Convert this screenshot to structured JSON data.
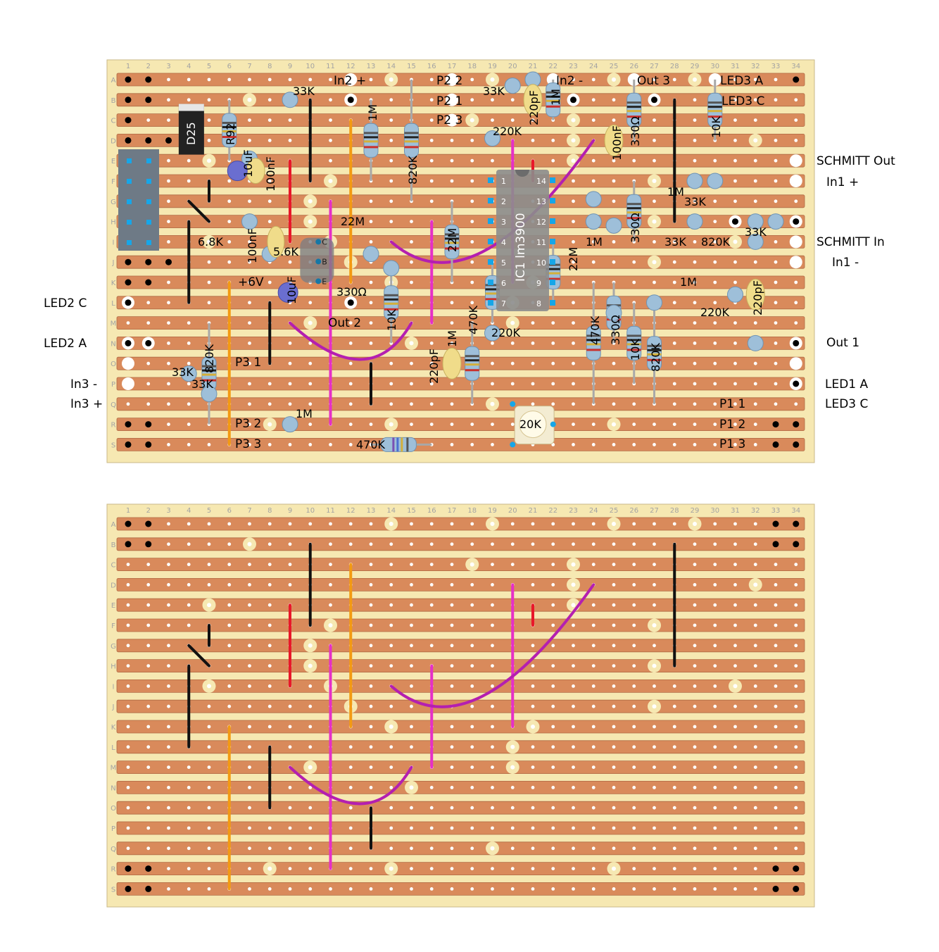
{
  "board": {
    "columns": [
      "1",
      "2",
      "3",
      "4",
      "5",
      "6",
      "7",
      "8",
      "9",
      "10",
      "11",
      "12",
      "13",
      "14",
      "15",
      "16",
      "17",
      "18",
      "19",
      "20",
      "21",
      "22",
      "23",
      "24",
      "25",
      "26",
      "27",
      "28",
      "29",
      "30",
      "31",
      "32",
      "33",
      "34"
    ],
    "rows": [
      "A",
      "B",
      "C",
      "D",
      "E",
      "F",
      "G",
      "H",
      "I",
      "J",
      "K",
      "L",
      "M",
      "N",
      "O",
      "P",
      "Q",
      "R",
      "S"
    ]
  },
  "colors": {
    "board": "#f6e8b2",
    "strip": "#d98a5b",
    "wire_black": "#111111",
    "wire_red": "#e8182a",
    "wire_orange": "#f39a12",
    "wire_magenta": "#e62fc7",
    "wire_purple": "#b41fb0",
    "component_blue": "#9ebfd9",
    "cap_yellow": "#f0dc8a",
    "electrolytic": "#6a6ed0"
  },
  "layout_top": {
    "labels": [
      {
        "id": "in2-plus",
        "text": "In2 +"
      },
      {
        "id": "p2-2",
        "text": "P2 2"
      },
      {
        "id": "p2-1",
        "text": "P2 1"
      },
      {
        "id": "p2-3",
        "text": "P2 3"
      },
      {
        "id": "in2-minus",
        "text": "In2 -"
      },
      {
        "id": "out-3",
        "text": "Out 3"
      },
      {
        "id": "led3-a",
        "text": "LED3 A"
      },
      {
        "id": "led3-c-top",
        "text": "LED3 C"
      },
      {
        "id": "schmitt-out",
        "text": "SCHMITT Out"
      },
      {
        "id": "in1-plus",
        "text": "In1 +"
      },
      {
        "id": "schmitt-in",
        "text": "SCHMITT In"
      },
      {
        "id": "in1-minus",
        "text": "In1 -"
      },
      {
        "id": "out-1",
        "text": "Out 1"
      },
      {
        "id": "led1-a",
        "text": "LED1 A"
      },
      {
        "id": "led3-c-bottom",
        "text": "LED3 C"
      },
      {
        "id": "led2-c",
        "text": "LED2 C"
      },
      {
        "id": "led2-a",
        "text": "LED2 A"
      },
      {
        "id": "in3-minus",
        "text": "In3 -"
      },
      {
        "id": "in3-plus",
        "text": "In3 +"
      },
      {
        "id": "plus-6v",
        "text": "+6V"
      },
      {
        "id": "out-2",
        "text": "Out 2"
      },
      {
        "id": "p3-1",
        "text": "P3 1"
      },
      {
        "id": "p3-2",
        "text": "P3 2"
      },
      {
        "id": "p3-3",
        "text": "P3 3"
      },
      {
        "id": "p1-1",
        "text": "P1 1"
      },
      {
        "id": "p1-2",
        "text": "P1 2"
      },
      {
        "id": "p1-3",
        "text": "P1 3"
      }
    ],
    "component_values": [
      {
        "id": "r-33k-a",
        "text": "33K"
      },
      {
        "id": "r-1m-a",
        "text": "1M"
      },
      {
        "id": "r-820k-a",
        "text": "820K"
      },
      {
        "id": "r-33k-b",
        "text": "33K"
      },
      {
        "id": "r-1m-b",
        "text": "1M"
      },
      {
        "id": "c-220pf-a",
        "text": "220pF"
      },
      {
        "id": "r-220k-a",
        "text": "220K"
      },
      {
        "id": "c-100nf-a",
        "text": "100nF"
      },
      {
        "id": "r-330-a",
        "text": "330Ω"
      },
      {
        "id": "r-10k-a",
        "text": "10K"
      },
      {
        "id": "d25",
        "text": "D25"
      },
      {
        "id": "r92",
        "text": "R92"
      },
      {
        "id": "c-10uf-a",
        "text": "10uF"
      },
      {
        "id": "c-100nf-b",
        "text": "100nF"
      },
      {
        "id": "r-22m-a",
        "text": "22M"
      },
      {
        "id": "r-22m-b",
        "text": "22M"
      },
      {
        "id": "r-6k8",
        "text": "6.8K"
      },
      {
        "id": "c-100nf-c",
        "text": "100nF"
      },
      {
        "id": "r-5k6",
        "text": "5.6K"
      },
      {
        "id": "c-10uf-b",
        "text": "10uF"
      },
      {
        "id": "r-330-b",
        "text": "330Ω"
      },
      {
        "id": "r-10k-b",
        "text": "10K"
      },
      {
        "id": "r-470k-a",
        "text": "470K"
      },
      {
        "id": "r-1m-c",
        "text": "1M"
      },
      {
        "id": "c-220pf-b",
        "text": "220pF"
      },
      {
        "id": "r-220k-b",
        "text": "220K"
      },
      {
        "id": "r-22m-c",
        "text": "22M"
      },
      {
        "id": "r-1m-d",
        "text": "1M"
      },
      {
        "id": "r-330-c",
        "text": "330Ω"
      },
      {
        "id": "r-1m-e",
        "text": "1M"
      },
      {
        "id": "r-33k-c",
        "text": "33K"
      },
      {
        "id": "r-33k-d",
        "text": "33K"
      },
      {
        "id": "r-820k-b",
        "text": "820K"
      },
      {
        "id": "r-33k-e",
        "text": "33K"
      },
      {
        "id": "r-1m-f",
        "text": "1M"
      },
      {
        "id": "r-220k-c",
        "text": "220K"
      },
      {
        "id": "c-220pf-c",
        "text": "220pF"
      },
      {
        "id": "r-470k-b",
        "text": "470K"
      },
      {
        "id": "r-330-d",
        "text": "330Ω"
      },
      {
        "id": "r-10k-c",
        "text": "10K"
      },
      {
        "id": "r-820k-c",
        "text": "820K"
      },
      {
        "id": "r-33k-f",
        "text": "33K"
      },
      {
        "id": "r-33k-g",
        "text": "33K"
      },
      {
        "id": "r-820k-d",
        "text": "820K"
      },
      {
        "id": "r-1m-g",
        "text": "1M"
      },
      {
        "id": "r-470k-c",
        "text": "470K"
      },
      {
        "id": "pot-20k",
        "text": "20K"
      },
      {
        "id": "r-1m-h",
        "text": "1M"
      },
      {
        "id": "r-10k-d",
        "text": "10K"
      },
      {
        "id": "r-10k-e",
        "text": "10K"
      }
    ],
    "ic": {
      "ref": "IC1",
      "part": "lm3900",
      "pins_left": [
        "1",
        "2",
        "3",
        "4",
        "5",
        "6",
        "7"
      ],
      "pins_right": [
        "14",
        "13",
        "12",
        "11",
        "10",
        "9",
        "8"
      ]
    },
    "transistor_pins": [
      "C",
      "B",
      "E"
    ]
  }
}
